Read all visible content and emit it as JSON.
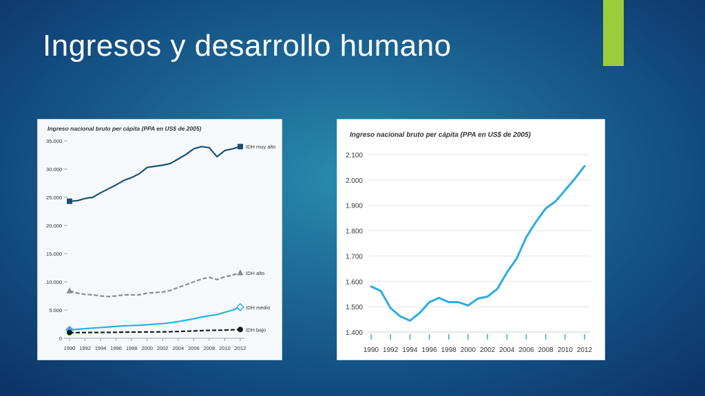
{
  "slide": {
    "title": "Ingresos y desarrollo humano",
    "accent_color": "#9bcc3c"
  },
  "chart_data": [
    {
      "type": "line",
      "caption": "Ingreso nacional bruto per cápita (PPA en US$ de 2005)",
      "x": [
        1990,
        1991,
        1992,
        1993,
        1994,
        1995,
        1996,
        1997,
        1998,
        1999,
        2000,
        2001,
        2002,
        2003,
        2004,
        2005,
        2006,
        2007,
        2008,
        2009,
        2010,
        2011,
        2012
      ],
      "x_tick_labels": [
        "1990",
        "1992",
        "1994",
        "1996",
        "1998",
        "2000",
        "2002",
        "2004",
        "2006",
        "2008",
        "2010",
        "2012"
      ],
      "y_tick_labels": [
        "0",
        "5.000",
        "10.000",
        "15.000",
        "20.000",
        "25.000",
        "30.000",
        "35.000"
      ],
      "ylim": [
        0,
        35000
      ],
      "series": [
        {
          "name": "IDH muy alto",
          "color": "#1b4f72",
          "dash": "solid",
          "marker": "square",
          "values": [
            24300,
            24400,
            24800,
            25000,
            25800,
            26500,
            27200,
            28000,
            28500,
            29200,
            30300,
            30500,
            30700,
            31000,
            31800,
            32600,
            33600,
            34000,
            33800,
            32200,
            33300,
            33600,
            34000
          ]
        },
        {
          "name": "IDH alto",
          "color": "#8a8a8a",
          "dash": "dashed",
          "marker": "triangle",
          "values": [
            8400,
            8000,
            7800,
            7700,
            7500,
            7400,
            7500,
            7700,
            7700,
            7700,
            8000,
            8100,
            8200,
            8500,
            9000,
            9500,
            10000,
            10500,
            10800,
            10400,
            10900,
            11200,
            11600
          ]
        },
        {
          "name": "IDH medio",
          "color": "#29b0e0",
          "dash": "solid",
          "marker": "diamond",
          "values": [
            1500,
            1600,
            1700,
            1800,
            1900,
            2000,
            2100,
            2200,
            2250,
            2300,
            2400,
            2500,
            2600,
            2750,
            2950,
            3200,
            3450,
            3750,
            4000,
            4200,
            4600,
            5000,
            5500
          ]
        },
        {
          "name": "IDH bajo",
          "color": "#1a1a1a",
          "dash": "dashed",
          "marker": "circle",
          "values": [
            1000,
            1000,
            1010,
            1020,
            1030,
            1040,
            1060,
            1080,
            1090,
            1100,
            1110,
            1120,
            1130,
            1150,
            1200,
            1250,
            1300,
            1350,
            1400,
            1420,
            1450,
            1500,
            1550
          ]
        }
      ]
    },
    {
      "type": "line",
      "caption": "Ingreso nacional bruto per cápita (PPA en US$ de 2005)",
      "x": [
        1990,
        1991,
        1992,
        1993,
        1994,
        1995,
        1996,
        1997,
        1998,
        1999,
        2000,
        2001,
        2002,
        2003,
        2004,
        2005,
        2006,
        2007,
        2008,
        2009,
        2010,
        2011,
        2012
      ],
      "x_tick_labels": [
        "1990",
        "1992",
        "1994",
        "1996",
        "1998",
        "2000",
        "2002",
        "2004",
        "2006",
        "2008",
        "2010",
        "2012"
      ],
      "y_tick_labels": [
        "1.400",
        "1.500",
        "1.600",
        "1.700",
        "1.800",
        "1.900",
        "2.000",
        "2.100"
      ],
      "ylim": [
        1400,
        2100
      ],
      "grid": "horizontal",
      "series": [
        {
          "color": "#29ace0",
          "values": [
            1580,
            1562,
            1495,
            1462,
            1445,
            1475,
            1518,
            1535,
            1518,
            1518,
            1505,
            1532,
            1540,
            1570,
            1635,
            1690,
            1775,
            1835,
            1888,
            1915,
            1960,
            2005,
            2055
          ]
        }
      ]
    }
  ]
}
